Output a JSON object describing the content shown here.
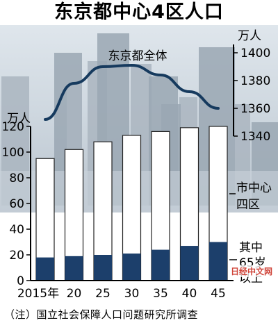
{
  "title": "东京都中心4区人口",
  "note": "（注）国立社会保障人口问题研究所调查",
  "watermark": "日经中文网",
  "chart_data": [
    {
      "type": "bar",
      "categories": [
        "2015年",
        "20",
        "25",
        "30",
        "35",
        "40",
        "45"
      ],
      "series": [
        {
          "name": "市中心四区",
          "values": [
            95,
            102,
            108,
            113,
            116,
            119,
            120
          ]
        },
        {
          "name": "其中65岁以上",
          "values": [
            18,
            19,
            20,
            21,
            24,
            27,
            30
          ]
        }
      ],
      "unit": "万人",
      "ylim": [
        0,
        120
      ],
      "yticks": [
        0,
        20,
        40,
        60,
        80,
        100,
        120
      ],
      "colors": {
        "total": "#ffffff",
        "elderly": "#1c3f6b",
        "outline": "#222222"
      }
    },
    {
      "type": "line",
      "series": [
        {
          "name": "东京都全体",
          "values": [
            1352,
            1378,
            1390,
            1391,
            1384,
            1372,
            1360
          ]
        }
      ],
      "unit": "万人",
      "ylim": [
        1340,
        1400
      ],
      "yticks": [
        1340,
        1360,
        1380,
        1400
      ],
      "colors": {
        "line": "#163a5e"
      }
    }
  ]
}
